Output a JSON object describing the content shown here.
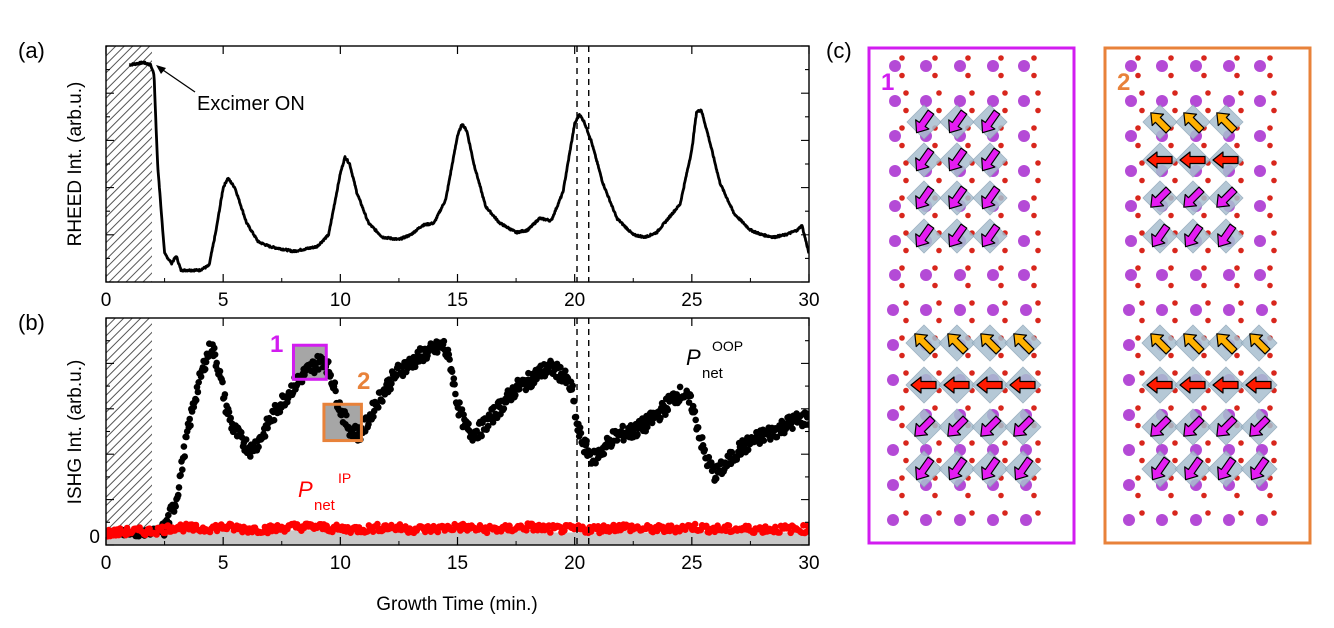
{
  "figure": {
    "panel_a_label": "(a)",
    "panel_b_label": "(b)",
    "panel_c_label": "(c)",
    "shared_xlabel": "Growth Time (min.)"
  },
  "colors": {
    "black": "#000000",
    "red": "#ff0000",
    "magenta": "#d21cf0",
    "orange": "#e8823a",
    "gray_fill": "#c8c8c8",
    "octahedron": "#a9bfcf",
    "purple_atom": "#b44ad6",
    "red_atom": "#d8261c",
    "arrow_magenta": "#e51cf2",
    "arrow_red": "#ff1a00",
    "arrow_orange": "#ffb000"
  },
  "chart_data": [
    {
      "id": "a",
      "type": "line",
      "title": "",
      "xlabel": "",
      "ylabel": "RHEED Int. (arb.u.)",
      "xlim": [
        0,
        30
      ],
      "ylim": [
        0,
        1
      ],
      "xticks": [
        0,
        5,
        10,
        15,
        20,
        25,
        30
      ],
      "show_y_tick_labels": false,
      "shaded_region": [
        0,
        2
      ],
      "vlines": [
        20.1,
        20.6
      ],
      "annotation": {
        "text": "Excimer ON",
        "arrow_to": [
          2.0,
          0.91
        ]
      },
      "series": [
        {
          "name": "RHEED",
          "color": "#000000",
          "x": [
            1.0,
            1.6,
            1.9,
            2.05,
            2.2,
            2.5,
            2.8,
            3.0,
            3.2,
            3.6,
            4.0,
            4.4,
            4.7,
            5.0,
            5.2,
            5.5,
            6.0,
            6.5,
            7.0,
            7.5,
            8.0,
            8.5,
            9.0,
            9.5,
            10.0,
            10.2,
            10.4,
            10.7,
            11.2,
            11.8,
            12.5,
            13.0,
            13.5,
            14.0,
            14.5,
            15.0,
            15.2,
            15.4,
            15.7,
            16.2,
            16.8,
            17.5,
            18.0,
            18.5,
            19.0,
            19.5,
            20.0,
            20.2,
            20.4,
            20.7,
            21.2,
            21.8,
            22.5,
            23.0,
            23.5,
            24.0,
            24.5,
            25.0,
            25.2,
            25.4,
            25.7,
            26.2,
            26.8,
            27.5,
            28.0,
            28.5,
            29.0,
            29.5,
            29.7,
            30.0
          ],
          "y": [
            0.92,
            0.93,
            0.92,
            0.88,
            0.5,
            0.12,
            0.08,
            0.11,
            0.05,
            0.05,
            0.05,
            0.07,
            0.22,
            0.4,
            0.44,
            0.4,
            0.25,
            0.17,
            0.15,
            0.14,
            0.13,
            0.14,
            0.15,
            0.2,
            0.46,
            0.53,
            0.5,
            0.38,
            0.25,
            0.19,
            0.18,
            0.2,
            0.24,
            0.25,
            0.35,
            0.62,
            0.67,
            0.64,
            0.5,
            0.32,
            0.25,
            0.21,
            0.22,
            0.27,
            0.26,
            0.38,
            0.67,
            0.71,
            0.68,
            0.6,
            0.42,
            0.27,
            0.2,
            0.19,
            0.21,
            0.27,
            0.33,
            0.56,
            0.72,
            0.73,
            0.62,
            0.42,
            0.29,
            0.22,
            0.2,
            0.19,
            0.2,
            0.22,
            0.24,
            0.12
          ]
        }
      ]
    },
    {
      "id": "b",
      "type": "scatter",
      "title": "",
      "xlabel": "Growth Time (min.)",
      "ylabel": "ISHG Int. (arb.u.)",
      "xlim": [
        0,
        30
      ],
      "ylim": [
        0,
        1
      ],
      "xticks": [
        0,
        5,
        10,
        15,
        20,
        25,
        30
      ],
      "yticks": [
        0
      ],
      "shaded_region": [
        0,
        2
      ],
      "vlines": [
        20.1,
        20.6
      ],
      "labels": {
        "oop_main": "P",
        "oop_sub": "net",
        "oop_sup": "OOP",
        "ip_main": "P",
        "ip_sub": "net",
        "ip_sup": "IP",
        "box1_label": "1",
        "box2_label": "2"
      },
      "box1": {
        "x": [
          8.0,
          9.4
        ],
        "y": [
          0.73,
          0.88
        ],
        "color": "#d21cf0"
      },
      "box2": {
        "x": [
          9.3,
          10.9
        ],
        "y": [
          0.46,
          0.62
        ],
        "color": "#e8823a"
      },
      "series": [
        {
          "name": "P_net OOP",
          "color": "#000000",
          "x": [
            0.0,
            0.5,
            1.0,
            1.5,
            2.0,
            2.5,
            3.0,
            3.4,
            3.8,
            4.2,
            4.5,
            4.8,
            5.1,
            5.4,
            5.8,
            6.2,
            6.6,
            7.0,
            7.5,
            8.0,
            8.5,
            9.0,
            9.3,
            9.6,
            9.9,
            10.2,
            10.5,
            10.8,
            11.1,
            11.5,
            12.0,
            12.5,
            13.0,
            13.5,
            14.0,
            14.4,
            14.7,
            15.0,
            15.3,
            15.6,
            16.0,
            16.5,
            17.0,
            17.5,
            18.0,
            18.5,
            19.0,
            19.5,
            19.9,
            20.1,
            20.4,
            20.8,
            21.2,
            21.6,
            22.0,
            22.5,
            23.0,
            23.5,
            23.8,
            24.2,
            24.6,
            25.0,
            25.3,
            25.6,
            26.0,
            26.5,
            27.0,
            27.5,
            28.0,
            28.5,
            29.0,
            29.5,
            30.0
          ],
          "y": [
            0.05,
            0.06,
            0.05,
            0.05,
            0.06,
            0.07,
            0.2,
            0.45,
            0.65,
            0.8,
            0.88,
            0.78,
            0.62,
            0.52,
            0.46,
            0.42,
            0.47,
            0.55,
            0.63,
            0.7,
            0.76,
            0.8,
            0.82,
            0.75,
            0.63,
            0.55,
            0.5,
            0.49,
            0.53,
            0.62,
            0.7,
            0.77,
            0.8,
            0.84,
            0.86,
            0.88,
            0.8,
            0.62,
            0.53,
            0.49,
            0.51,
            0.57,
            0.63,
            0.69,
            0.72,
            0.76,
            0.78,
            0.75,
            0.68,
            0.52,
            0.44,
            0.38,
            0.42,
            0.47,
            0.49,
            0.5,
            0.53,
            0.57,
            0.6,
            0.65,
            0.67,
            0.62,
            0.5,
            0.38,
            0.31,
            0.36,
            0.42,
            0.45,
            0.48,
            0.5,
            0.53,
            0.55,
            0.56
          ]
        },
        {
          "name": "P_net IP",
          "color": "#ff0000",
          "x": [
            0,
            1,
            2,
            3,
            4,
            5,
            6,
            7,
            8,
            9,
            10,
            11,
            12,
            13,
            14,
            15,
            16,
            17,
            18,
            19,
            20,
            21,
            22,
            23,
            24,
            25,
            26,
            27,
            28,
            29,
            30
          ],
          "y": [
            0.05,
            0.06,
            0.06,
            0.08,
            0.07,
            0.08,
            0.07,
            0.07,
            0.08,
            0.08,
            0.07,
            0.07,
            0.08,
            0.07,
            0.07,
            0.08,
            0.07,
            0.07,
            0.08,
            0.07,
            0.07,
            0.07,
            0.08,
            0.07,
            0.07,
            0.08,
            0.07,
            0.07,
            0.07,
            0.07,
            0.07
          ]
        }
      ]
    }
  ],
  "structure": {
    "panel1_label": "1",
    "panel2_label": "2",
    "panel1_border": "#d21cf0",
    "panel2_border": "#e8823a"
  }
}
